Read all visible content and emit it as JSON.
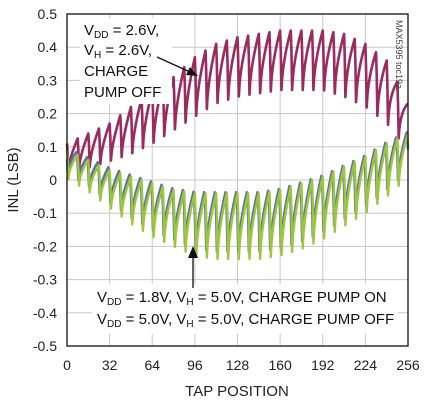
{
  "chart_data": {
    "type": "line",
    "xlabel": "TAP POSITION",
    "ylabel": "INL (LSB)",
    "xlim": [
      0,
      256
    ],
    "ylim": [
      -0.5,
      0.5
    ],
    "x_ticks": [
      0,
      32,
      64,
      96,
      128,
      160,
      192,
      224,
      256
    ],
    "y_ticks": [
      0.5,
      0.4,
      0.3,
      0.2,
      0.1,
      0,
      -0.1,
      -0.2,
      -0.3,
      -0.4,
      -0.5
    ],
    "grid": true,
    "figure_code": "MAX5395 toc19a",
    "series": [
      {
        "color": "#9b2a5e",
        "envelope_x": [
          0,
          16,
          32,
          48,
          64,
          80,
          96,
          112,
          128,
          144,
          160,
          176,
          192,
          208,
          224,
          240,
          256
        ],
        "upper": [
          0.11,
          0.14,
          0.17,
          0.22,
          0.27,
          0.31,
          0.37,
          0.41,
          0.43,
          0.44,
          0.45,
          0.45,
          0.45,
          0.44,
          0.41,
          0.36,
          0.23
        ],
        "lower": [
          0.02,
          0.03,
          0.05,
          0.07,
          0.1,
          0.14,
          0.18,
          0.22,
          0.24,
          0.25,
          0.26,
          0.26,
          0.26,
          0.24,
          0.21,
          0.16,
          0.08
        ]
      },
      {
        "color": "#5b6fa8",
        "envelope_x": [
          0,
          16,
          32,
          48,
          64,
          80,
          96,
          112,
          128,
          144,
          160,
          176,
          192,
          208,
          224,
          240,
          256
        ],
        "upper": [
          0.1,
          0.07,
          0.04,
          0.02,
          0.0,
          -0.02,
          -0.03,
          -0.03,
          -0.03,
          -0.03,
          -0.02,
          0.0,
          0.02,
          0.05,
          0.08,
          0.12,
          0.15
        ],
        "lower": [
          0.01,
          -0.03,
          -0.08,
          -0.13,
          -0.17,
          -0.2,
          -0.23,
          -0.24,
          -0.24,
          -0.24,
          -0.23,
          -0.21,
          -0.18,
          -0.14,
          -0.1,
          -0.05,
          0.01
        ]
      },
      {
        "color": "#9dc73a",
        "envelope_x": [
          0,
          16,
          32,
          48,
          64,
          80,
          96,
          112,
          128,
          144,
          160,
          176,
          192,
          208,
          224,
          240,
          256
        ],
        "upper": [
          0.09,
          0.06,
          0.03,
          0.01,
          -0.01,
          -0.03,
          -0.04,
          -0.04,
          -0.04,
          -0.04,
          -0.03,
          -0.01,
          0.01,
          0.04,
          0.07,
          0.11,
          0.14
        ],
        "lower": [
          0.0,
          -0.04,
          -0.09,
          -0.14,
          -0.18,
          -0.21,
          -0.24,
          -0.25,
          -0.25,
          -0.25,
          -0.24,
          -0.22,
          -0.19,
          -0.15,
          -0.11,
          -0.06,
          0.0
        ]
      }
    ],
    "annotations": {
      "top_line1": "V",
      "top_line1_sub": "DD",
      "top_line1_rest": " = 2.6V,",
      "top_line2": "V",
      "top_line2_sub": "H",
      "top_line2_rest": " = 2.6V,",
      "top_line3": "CHARGE",
      "top_line4": "PUMP OFF",
      "bottom_line1_a": "V",
      "bottom_line1_a_sub": "DD",
      "bottom_line1_b": " = 1.8V, V",
      "bottom_line1_b_sub": "H",
      "bottom_line1_c": " = 5.0V, CHARGE PUMP ON",
      "bottom_line2_a": "V",
      "bottom_line2_a_sub": "DD",
      "bottom_line2_b": " = 5.0V, V",
      "bottom_line2_b_sub": "H",
      "bottom_line2_c": " = 5.0V, CHARGE PUMP OFF"
    }
  }
}
